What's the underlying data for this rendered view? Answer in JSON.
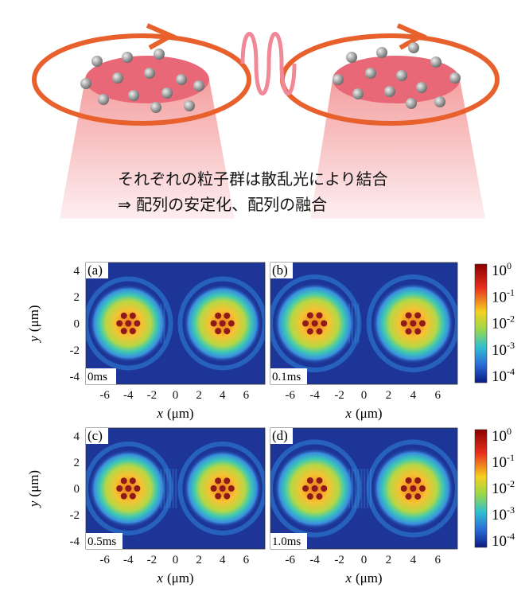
{
  "diagram": {
    "caption_lines": [
      "それぞれの粒子群は散乱光により結合",
      "⇒  配列の安定化、配列の融合"
    ]
  },
  "figure": {
    "panels": [
      {
        "label": "(a)",
        "time": "0ms"
      },
      {
        "label": "(b)",
        "time": "0.1ms"
      },
      {
        "label": "(c)",
        "time": "0.5ms"
      },
      {
        "label": "(d)",
        "time": "1.0ms"
      }
    ],
    "x_ticks": [
      -6,
      -4,
      -2,
      0,
      2,
      4,
      6
    ],
    "y_ticks": [
      4,
      2,
      0,
      -2,
      -4
    ],
    "x_axis_label": {
      "var": "x",
      "unit": "(μm)"
    },
    "y_axis_label": {
      "var": "y",
      "unit": "(μm)"
    },
    "colorbar_ticks": [
      {
        "base": "10",
        "exponent": "0"
      },
      {
        "base": "10",
        "exponent": "-1"
      },
      {
        "base": "10",
        "exponent": "-2"
      },
      {
        "base": "10",
        "exponent": "-3"
      },
      {
        "base": "10",
        "exponent": "-4"
      }
    ]
  }
}
